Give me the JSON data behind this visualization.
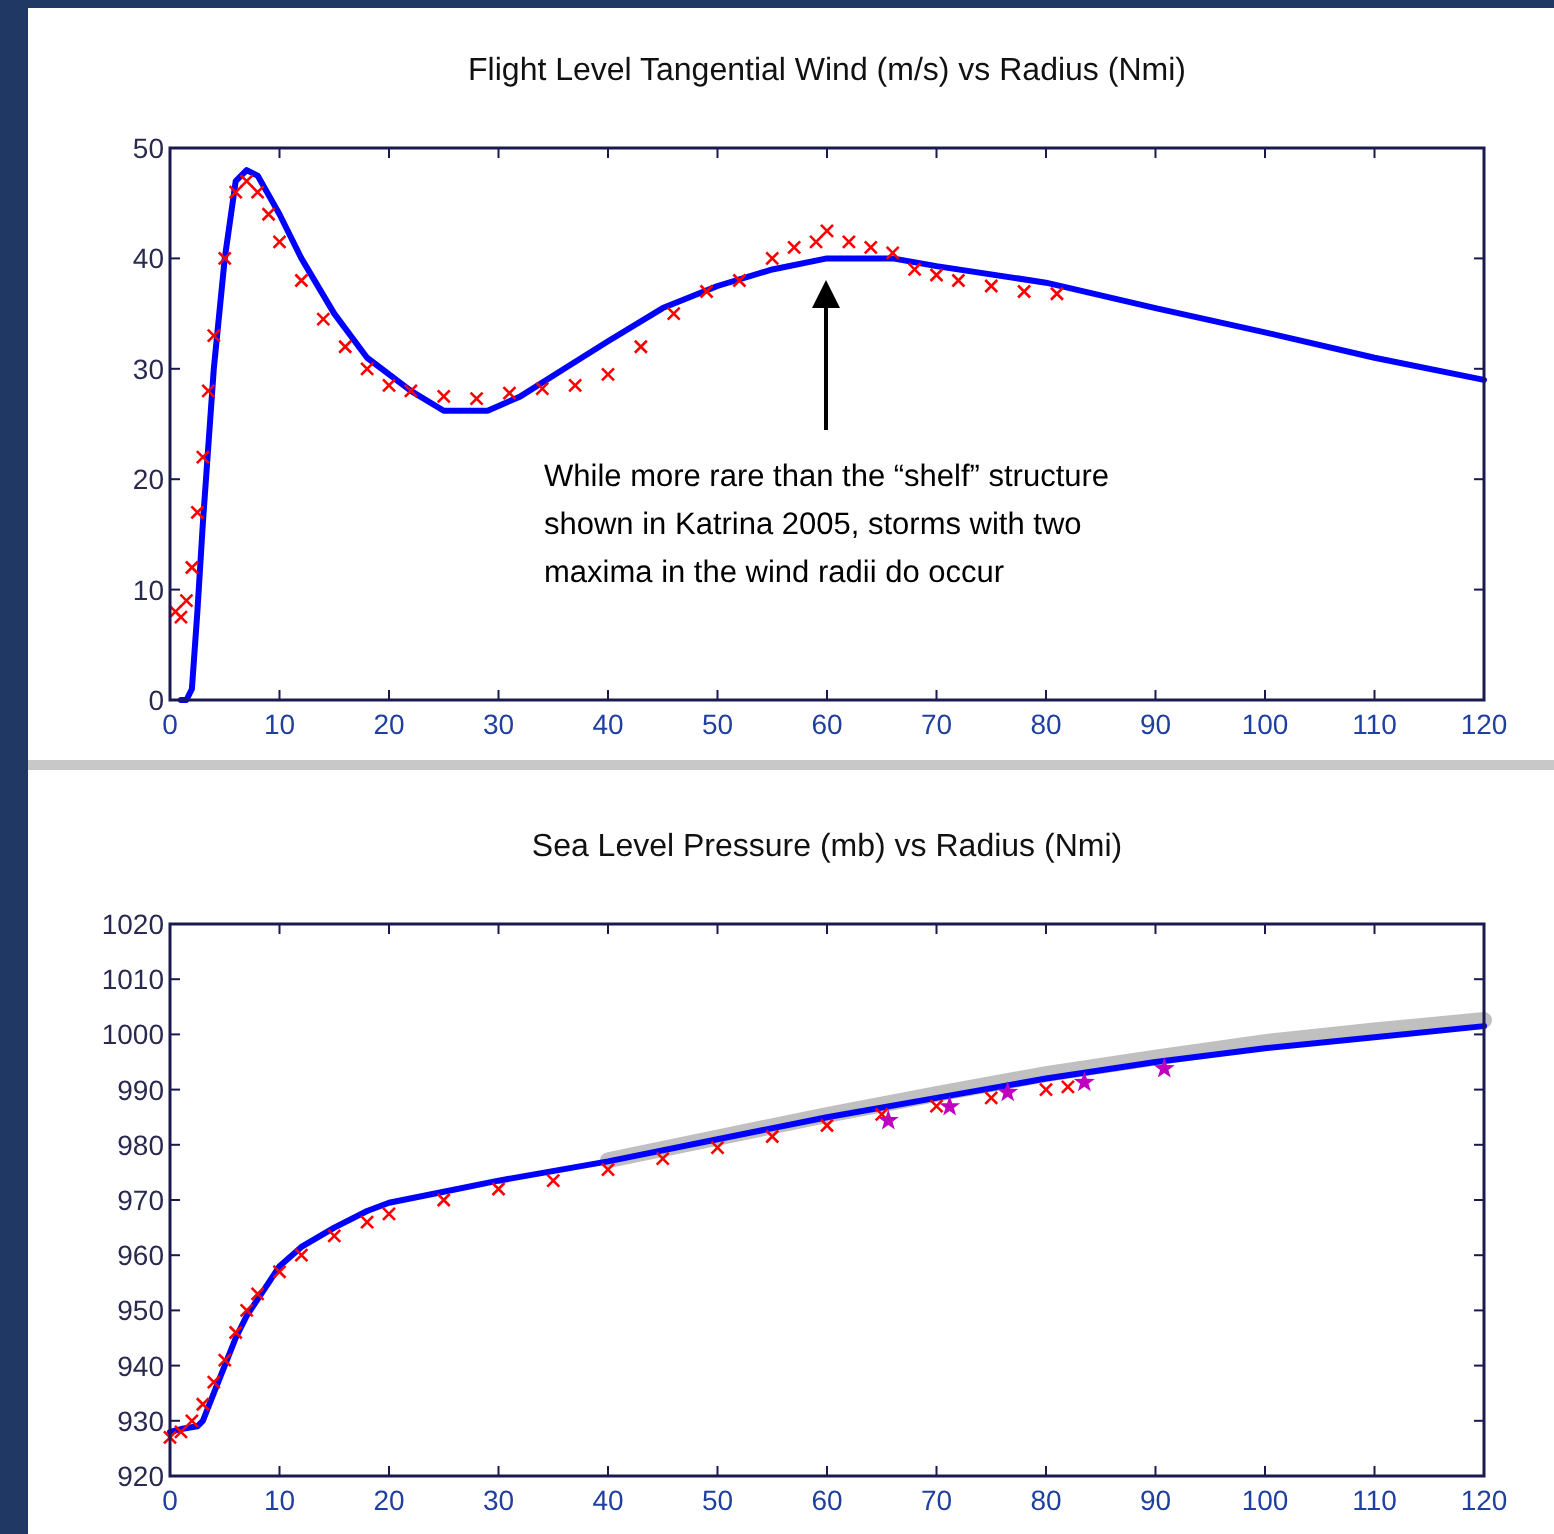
{
  "chart_data": [
    {
      "type": "line",
      "title": "Flight Level Tangential Wind (m/s) vs Radius (Nmi)",
      "xlim": [
        0,
        120
      ],
      "ylim": [
        0,
        50
      ],
      "xticks": [
        0,
        10,
        20,
        30,
        40,
        50,
        60,
        70,
        80,
        90,
        100,
        110,
        120
      ],
      "yticks": [
        0,
        10,
        20,
        30,
        40,
        50
      ],
      "grid": false,
      "annotations": [
        "While more rare than the “shelf” structure shown in Katrina 2005, storms with two maxima in the wind radii do occur"
      ],
      "series": [
        {
          "type": "line",
          "color": "#0000ff",
          "x": [
            1,
            1.5,
            2,
            2.5,
            3,
            4,
            5,
            6,
            7,
            8,
            10,
            12,
            15,
            18,
            22,
            25,
            29,
            32,
            36,
            40,
            45,
            50,
            55,
            60,
            66,
            70,
            80,
            90,
            100,
            110,
            120
          ],
          "values": [
            0,
            0,
            1,
            8,
            16,
            30,
            40,
            47,
            48,
            47.5,
            44,
            40,
            35,
            31,
            28,
            26.2,
            26.2,
            27.5,
            30,
            32.5,
            35.5,
            37.5,
            39,
            40,
            40,
            39.3,
            37.8,
            35.5,
            33.3,
            31,
            29
          ]
        },
        {
          "type": "scatter",
          "marker": "cross",
          "color": "#ff0000",
          "x": [
            0.5,
            1,
            1.5,
            2,
            2.5,
            3,
            3.5,
            4,
            5,
            6,
            7,
            8,
            9,
            10,
            12,
            14,
            16,
            18,
            20,
            22,
            25,
            28,
            31,
            34,
            37,
            40,
            43,
            46,
            49,
            52,
            55,
            57,
            59,
            60,
            62,
            64,
            66,
            68,
            70,
            72,
            75,
            78,
            81
          ],
          "values": [
            8,
            7.5,
            9,
            12,
            17,
            22,
            28,
            33,
            40,
            46,
            47,
            46,
            44,
            41.5,
            38,
            34.5,
            32,
            30,
            28.5,
            28,
            27.5,
            27.3,
            27.8,
            28.2,
            28.5,
            29.5,
            32,
            35,
            37,
            38,
            40,
            41,
            41.5,
            42.5,
            41.5,
            41,
            40.5,
            39,
            38.5,
            38,
            37.5,
            37,
            36.8
          ]
        }
      ]
    },
    {
      "type": "line",
      "title": "Sea Level Pressure (mb) vs Radius (Nmi)",
      "xlim": [
        0,
        120
      ],
      "ylim": [
        920,
        1020
      ],
      "xticks": [
        0,
        10,
        20,
        30,
        40,
        50,
        60,
        70,
        80,
        90,
        100,
        110,
        120
      ],
      "yticks": [
        920,
        930,
        940,
        950,
        960,
        970,
        980,
        990,
        1000,
        1010,
        1020
      ],
      "grid": false,
      "series": [
        {
          "type": "line",
          "color": "#c0c0c0",
          "x": [
            40,
            50,
            60,
            70,
            80,
            90,
            100,
            110,
            120
          ],
          "values": [
            977.2,
            981.3,
            985.4,
            989.2,
            992.8,
            995.8,
            998.6,
            1000.7,
            1002.6
          ]
        },
        {
          "type": "line",
          "color": "#0000ff",
          "x": [
            0,
            1,
            2.5,
            3,
            4,
            5,
            6,
            7,
            8,
            9,
            10,
            12,
            15,
            18,
            20,
            25,
            30,
            40,
            50,
            60,
            70,
            80,
            90,
            100,
            110,
            120
          ],
          "values": [
            928,
            928.5,
            929,
            930,
            935,
            940,
            945,
            949,
            952,
            955,
            958,
            961.5,
            965,
            968,
            969.5,
            971.5,
            973.5,
            977,
            981,
            985,
            988.5,
            992,
            995,
            997.5,
            999.5,
            1001.5
          ]
        },
        {
          "type": "scatter",
          "marker": "cross",
          "color": "#ff0000",
          "x": [
            0,
            1,
            2,
            3,
            4,
            5,
            6,
            7,
            8,
            10,
            12,
            15,
            18,
            20,
            25,
            30,
            35,
            40,
            45,
            50,
            55,
            60,
            65,
            70,
            75,
            80,
            82
          ],
          "values": [
            927,
            928,
            930,
            933,
            937,
            941,
            946,
            950,
            953,
            957,
            960,
            963.5,
            966,
            967.5,
            970,
            972,
            973.5,
            975.5,
            977.5,
            979.5,
            981.5,
            983.5,
            985.5,
            987,
            988.5,
            990,
            990.5
          ]
        },
        {
          "type": "scatter",
          "marker": "star",
          "color": "#c000c0",
          "x": [
            65.6,
            71.2,
            76.5,
            83.5,
            90.8
          ],
          "values": [
            984.4,
            986.9,
            989.5,
            991.3,
            993.8
          ]
        }
      ]
    }
  ]
}
